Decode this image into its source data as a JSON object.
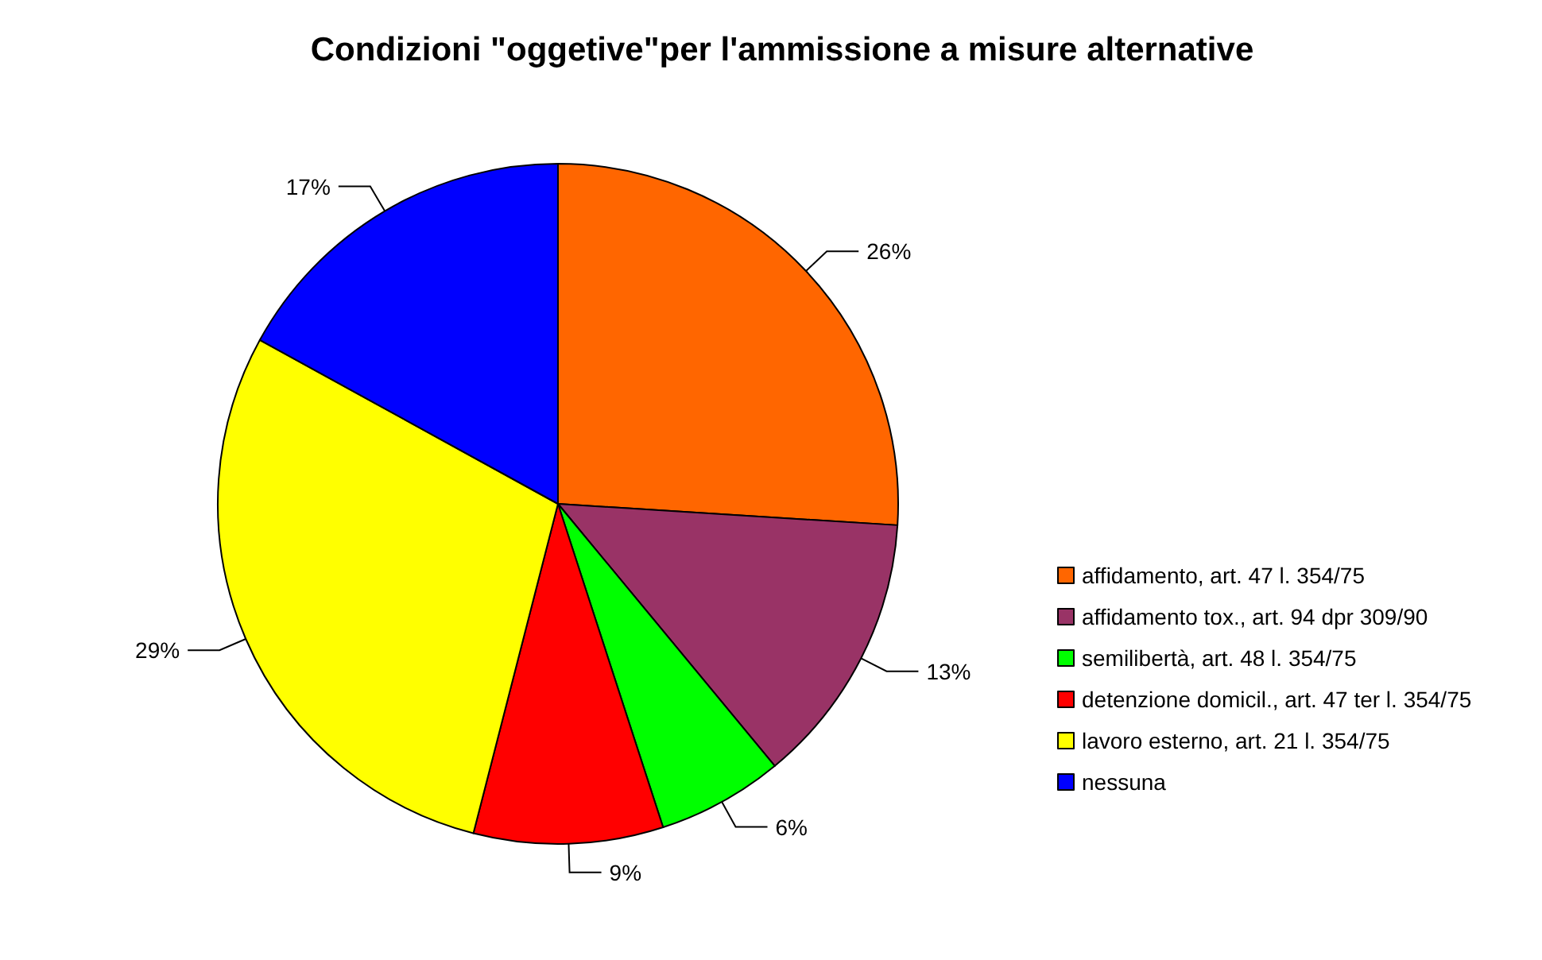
{
  "chart_data": {
    "type": "pie",
    "title": "Condizioni \"oggetive\"per l'ammissione a misure alternative",
    "categories": [
      "affidamento, art. 47 l. 354/75",
      "affidamento tox., art. 94 dpr 309/90",
      "semilibertà, art. 48 l. 354/75",
      "detenzione domicil., art. 47 ter l. 354/75",
      "lavoro esterno, art. 21 l. 354/75",
      "nessuna"
    ],
    "values": [
      26,
      13,
      6,
      9,
      29,
      17
    ],
    "value_labels": [
      "26%",
      "13%",
      "6%",
      "9%",
      "29%",
      "17%"
    ],
    "colors": [
      "#ff6600",
      "#993366",
      "#00ff00",
      "#ff0000",
      "#ffff00",
      "#0000ff"
    ],
    "legend": "right"
  }
}
